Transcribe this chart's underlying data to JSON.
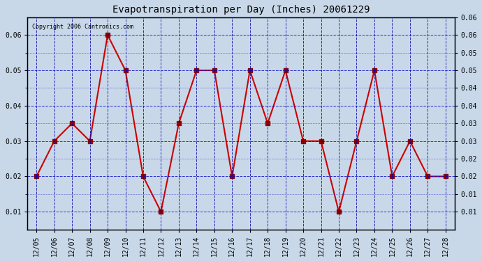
{
  "title": "Evapotranspiration per Day (Inches) 20061229",
  "copyright": "Copyright 2006 Cantronics.com",
  "dates": [
    "12/05",
    "12/06",
    "12/07",
    "12/08",
    "12/09",
    "12/10",
    "12/11",
    "12/12",
    "12/13",
    "12/14",
    "12/15",
    "12/16",
    "12/17",
    "12/18",
    "12/19",
    "12/20",
    "12/21",
    "12/22",
    "12/23",
    "12/24",
    "12/25",
    "12/26",
    "12/27",
    "12/28"
  ],
  "values": [
    0.02,
    0.03,
    0.035,
    0.03,
    0.06,
    0.05,
    0.02,
    0.01,
    0.035,
    0.05,
    0.05,
    0.02,
    0.05,
    0.035,
    0.05,
    0.03,
    0.03,
    0.01,
    0.03,
    0.05,
    0.02,
    0.03,
    0.02,
    0.02
  ],
  "line_color": "#cc0000",
  "marker_color": "#8b0000",
  "bg_color": "#c8d8e8",
  "plot_bg_color": "#c8d8e8",
  "grid_color_major": "#0000cc",
  "grid_color_minor": "#6666cc",
  "ylim": [
    0.005,
    0.065
  ],
  "yticks": [
    0.01,
    0.02,
    0.03,
    0.04,
    0.05,
    0.06
  ],
  "ytick_labels_right": [
    "0.01",
    "0.01",
    "0.02",
    "0.02",
    "0.03",
    "0.03",
    "0.04",
    "0.04",
    "0.05",
    "0.05",
    "0.06",
    "0.06"
  ]
}
